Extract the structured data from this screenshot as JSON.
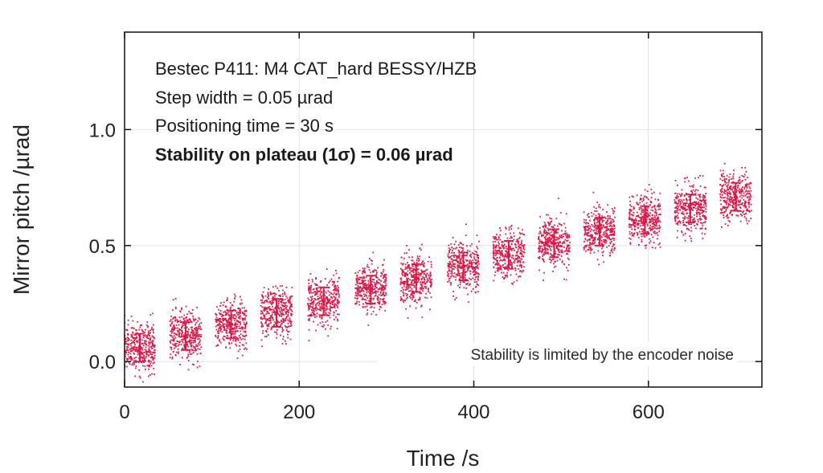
{
  "chart_data": {
    "type": "scatter",
    "xlabel": "Time /s",
    "ylabel": "Mirror pitch /µrad",
    "xlim": [
      0,
      730
    ],
    "ylim": [
      -0.11,
      1.42
    ],
    "x_ticks": [
      0,
      200,
      400,
      600
    ],
    "x_tick_labels": [
      "0",
      "200",
      "400",
      "600"
    ],
    "y_ticks": [
      0.0,
      0.5,
      1.0
    ],
    "y_tick_labels": [
      "0.0",
      "0.5",
      "1.0"
    ],
    "grid": true,
    "point_color": "#d81b4a",
    "annotations": [
      "Bestec P411: M4 CAT_hard BESSY/HZB",
      "Step width = 0.05 µrad",
      "Positioning time = 30 s",
      "Stability on plateau (1σ) = 0.06 µrad"
    ],
    "note": "Stability is limited by the encoder noise",
    "series": [
      {
        "plateaus": [
          {
            "x_start": 0,
            "x_end": 35,
            "mean": 0.06,
            "sd": 0.06
          },
          {
            "x_start": 52,
            "x_end": 88,
            "mean": 0.11,
            "sd": 0.06
          },
          {
            "x_start": 104,
            "x_end": 140,
            "mean": 0.16,
            "sd": 0.06
          },
          {
            "x_start": 156,
            "x_end": 192,
            "mean": 0.21,
            "sd": 0.06
          },
          {
            "x_start": 210,
            "x_end": 246,
            "mean": 0.26,
            "sd": 0.06
          },
          {
            "x_start": 264,
            "x_end": 300,
            "mean": 0.31,
            "sd": 0.06
          },
          {
            "x_start": 316,
            "x_end": 352,
            "mean": 0.36,
            "sd": 0.06
          },
          {
            "x_start": 370,
            "x_end": 406,
            "mean": 0.41,
            "sd": 0.06
          },
          {
            "x_start": 422,
            "x_end": 458,
            "mean": 0.46,
            "sd": 0.06
          },
          {
            "x_start": 474,
            "x_end": 510,
            "mean": 0.51,
            "sd": 0.06
          },
          {
            "x_start": 526,
            "x_end": 562,
            "mean": 0.56,
            "sd": 0.06
          },
          {
            "x_start": 578,
            "x_end": 614,
            "mean": 0.61,
            "sd": 0.06
          },
          {
            "x_start": 630,
            "x_end": 666,
            "mean": 0.66,
            "sd": 0.06
          },
          {
            "x_start": 682,
            "x_end": 718,
            "mean": 0.71,
            "sd": 0.06
          }
        ]
      }
    ]
  }
}
